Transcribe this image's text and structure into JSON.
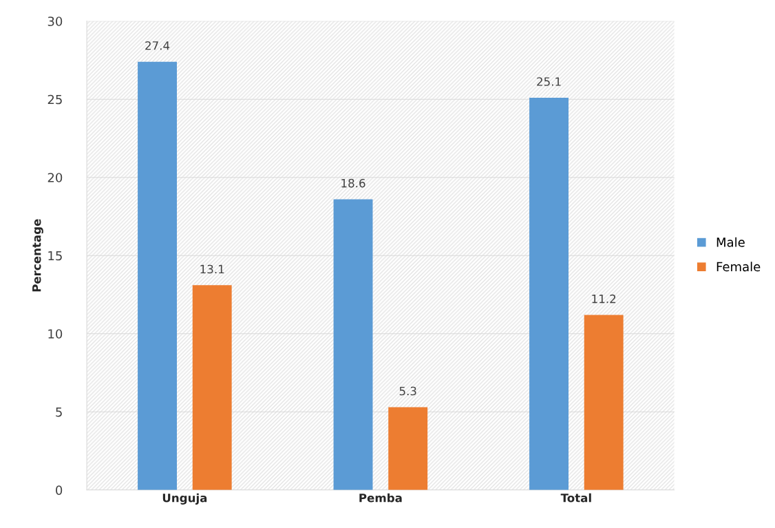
{
  "chart_data": {
    "type": "bar",
    "ylabel": "Percentage",
    "categories": [
      "Unguja",
      "Pemba",
      "Total"
    ],
    "series": [
      {
        "name": "Male",
        "color": "#5b9bd5",
        "values": [
          27.4,
          18.6,
          25.1
        ]
      },
      {
        "name": "Female",
        "color": "#ed7d31",
        "values": [
          13.1,
          5.3,
          11.2
        ]
      }
    ],
    "ylim": [
      0,
      30
    ],
    "yticks": [
      0,
      5,
      10,
      15,
      20,
      25,
      30
    ],
    "grid": "y",
    "legend": "right",
    "data_labels": true
  }
}
